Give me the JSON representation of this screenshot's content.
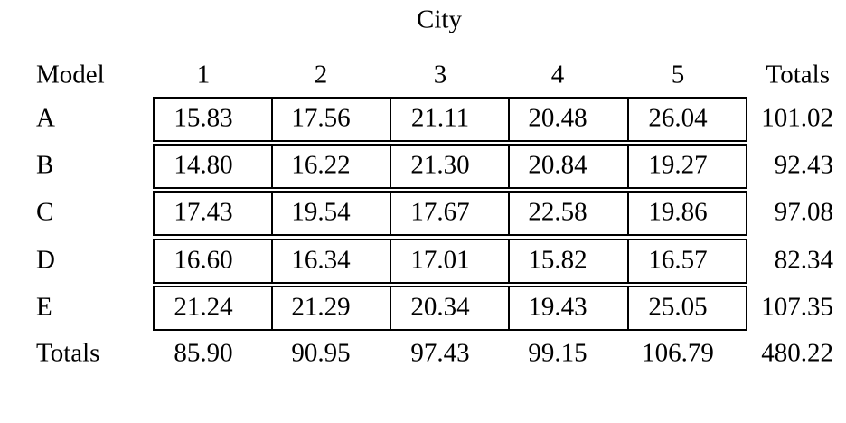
{
  "table": {
    "title": "City",
    "header": [
      "Model",
      "1",
      "2",
      "3",
      "4",
      "5",
      "Totals"
    ],
    "rows": [
      [
        "A",
        "15.83",
        "17.56",
        "21.11",
        "20.48",
        "26.04",
        "101.02"
      ],
      [
        "B",
        "14.80",
        "16.22",
        "21.30",
        "20.84",
        "19.27",
        "92.43"
      ],
      [
        "C",
        "17.43",
        "19.54",
        "17.67",
        "22.58",
        "19.86",
        "97.08"
      ],
      [
        "D",
        "16.60",
        "16.34",
        "17.01",
        "15.82",
        "16.57",
        "82.34"
      ],
      [
        "E",
        "21.24",
        "21.29",
        "20.34",
        "19.43",
        "25.05",
        "107.35"
      ]
    ],
    "totals": [
      "Totals",
      "85.90",
      "90.95",
      "97.43",
      "99.15",
      "106.79",
      "480.22"
    ]
  }
}
